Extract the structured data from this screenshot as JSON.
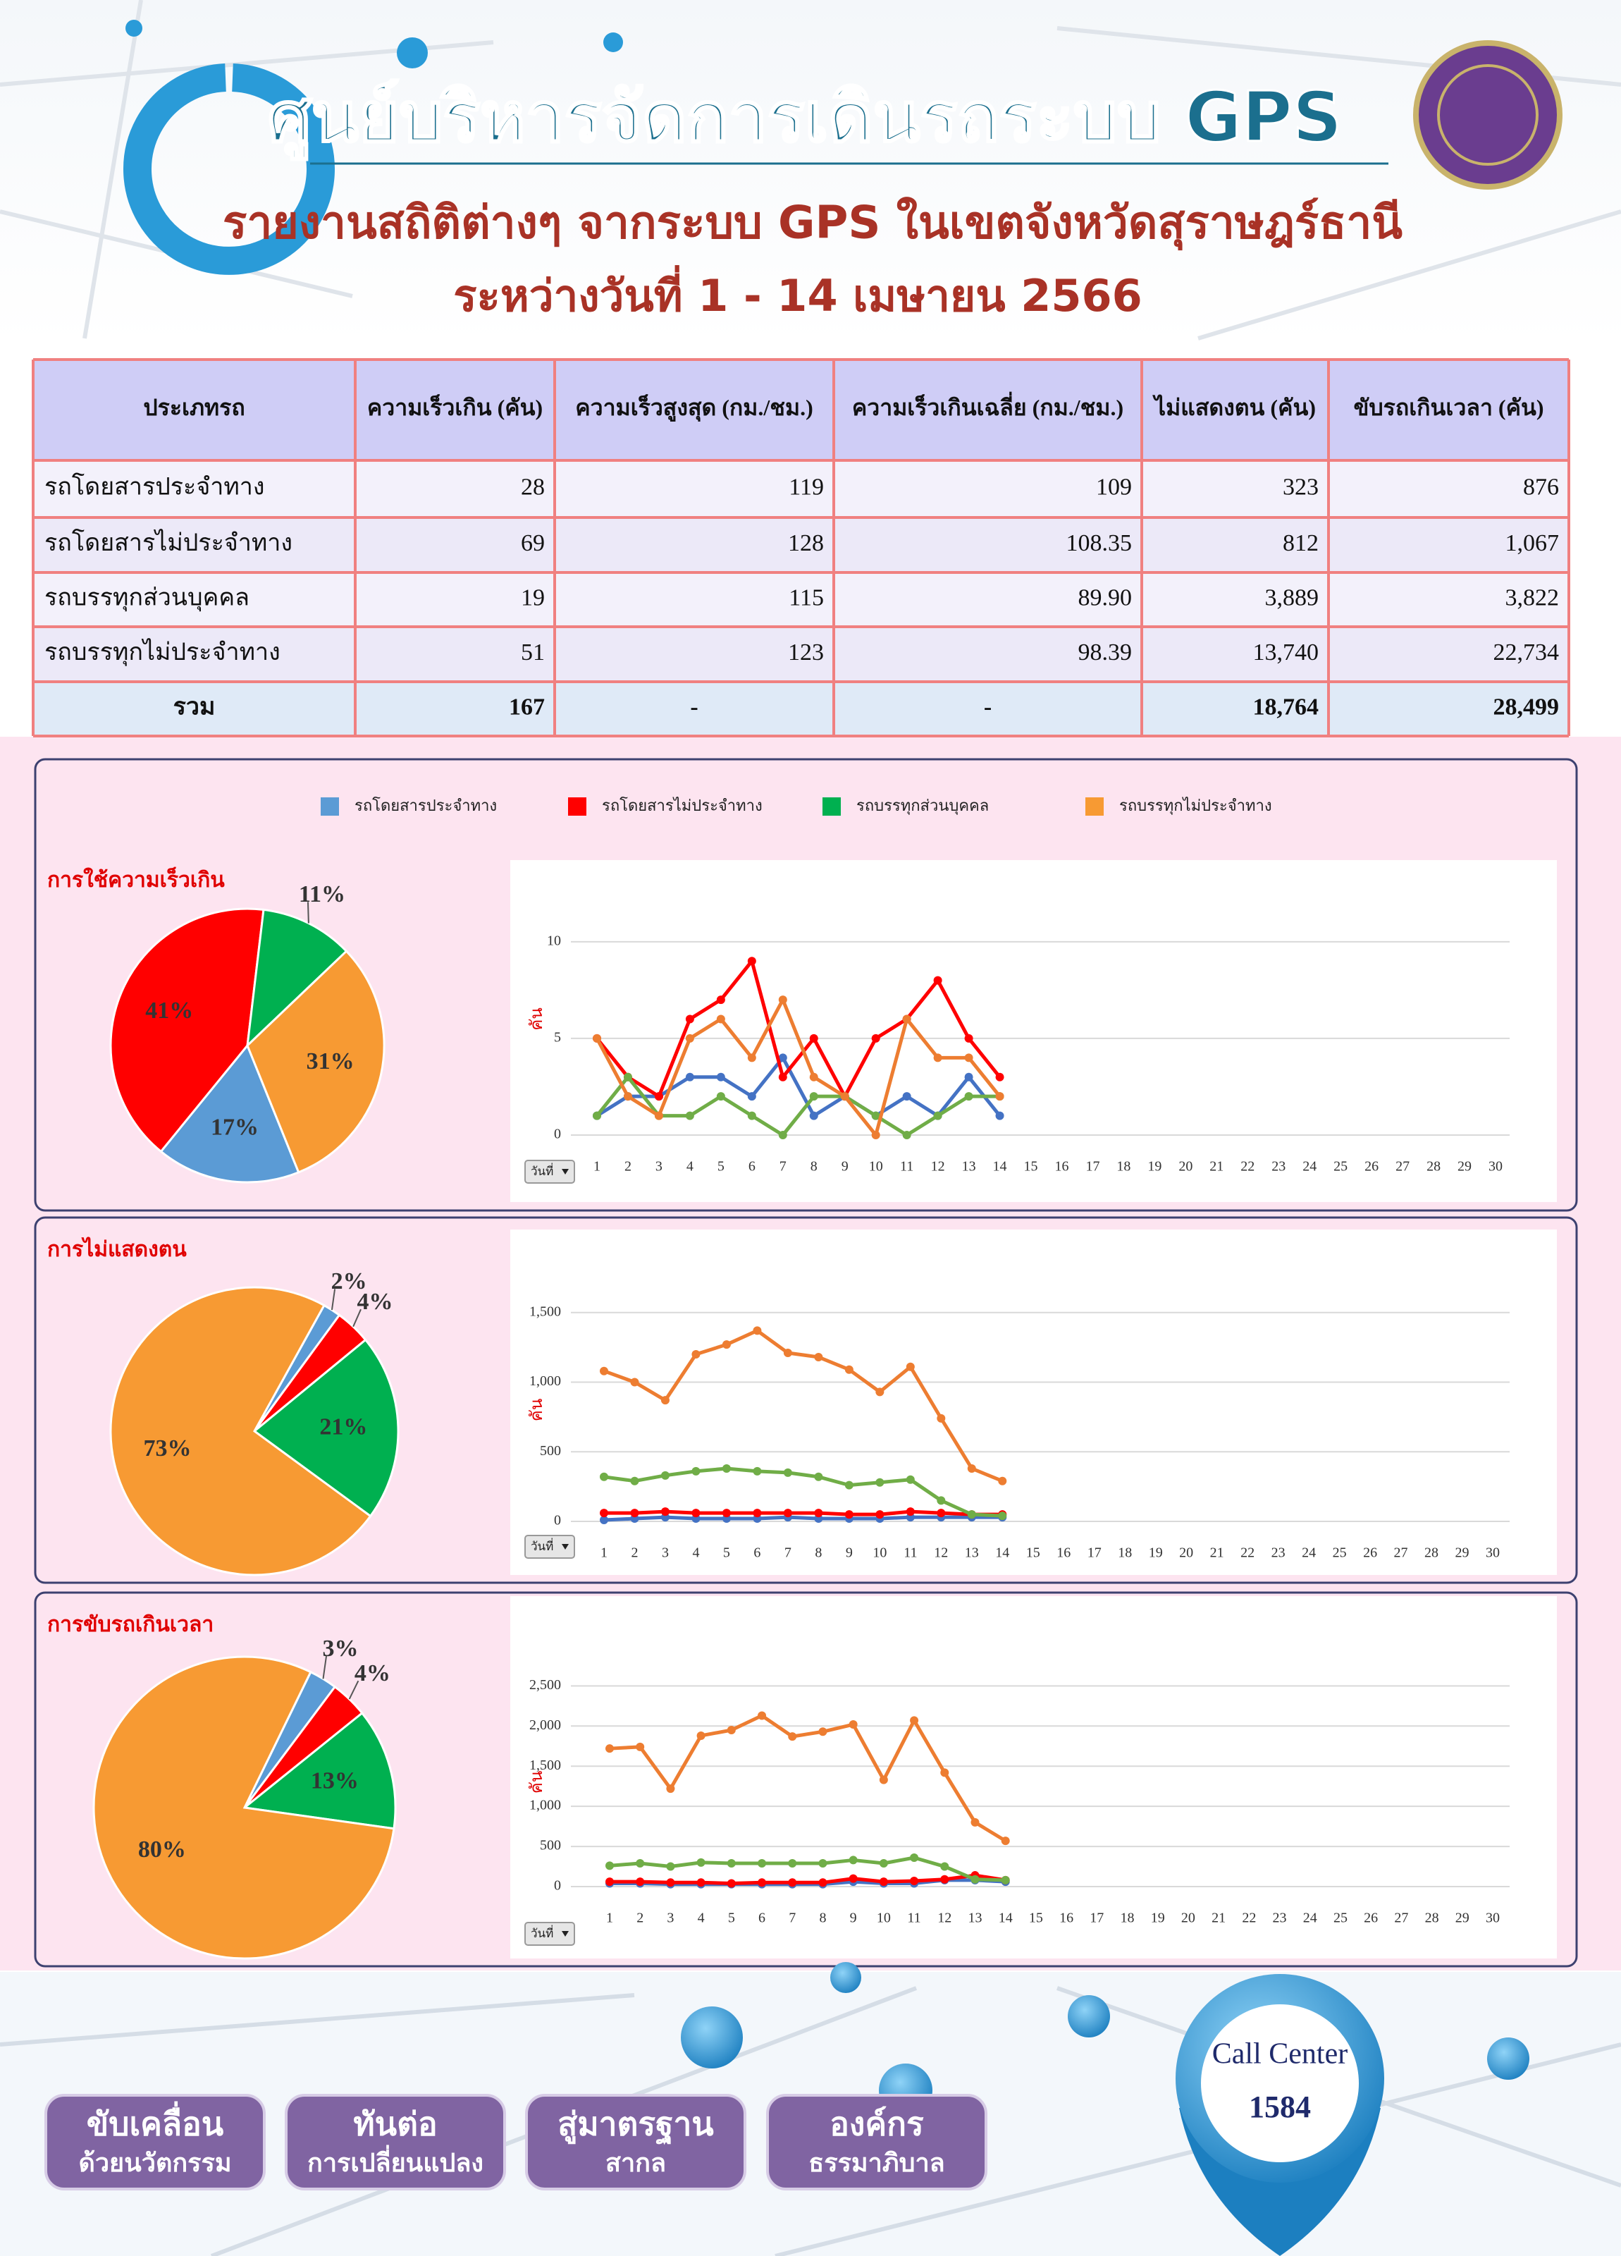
{
  "header": {
    "title": "ศูนย์บริหารจัดการเดินรถระบบ GPS",
    "subtitle": "รายงานสถิติต่างๆ จากระบบ GPS ในเขตจังหวัดสุราษฎร์ธานี",
    "period": "ระหว่างวันที่ 1 - 14 เมษายน 2566"
  },
  "table": {
    "header": [
      "ประเภทรถ",
      "ความเร็วเกิน (คัน)",
      "ความเร็วสูงสุด (กม./ชม.)",
      "ความเร็วเกินเฉลี่ย (กม./ชม.)",
      "ไม่แสดงตน (คัน)",
      "ขับรถเกินเวลา (คัน)"
    ],
    "rows": [
      [
        "รถโดยสารประจำทาง",
        "28",
        "119",
        "109",
        "323",
        "876"
      ],
      [
        "รถโดยสารไม่ประจำทาง",
        "69",
        "128",
        "108.35",
        "812",
        "1,067"
      ],
      [
        "รถบรรทุกส่วนบุคคล",
        "19",
        "115",
        "89.90",
        "3,889",
        "3,822"
      ],
      [
        "รถบรรทุกไม่ประจำทาง",
        "51",
        "123",
        "98.39",
        "13,740",
        "22,734"
      ],
      [
        "รวม",
        "167",
        "-",
        "-",
        "18,764",
        "28,499"
      ]
    ]
  },
  "chart_data": [
    {
      "type": "pie",
      "title": "การใช้ความเร็วเกิน",
      "values": [
        17,
        41,
        11,
        31
      ],
      "value_labels": [
        "17%",
        "41%",
        "11%",
        "31%"
      ],
      "colors": [
        "#5b9bd5",
        "#ff0000",
        "#00b050",
        "#f79a33"
      ]
    },
    {
      "type": "line",
      "ylabel": "คัน",
      "dropdown": "วันที่",
      "categories": [
        "1",
        "2",
        "3",
        "4",
        "5",
        "6",
        "7",
        "8",
        "9",
        "10",
        "11",
        "12",
        "13",
        "14",
        "15",
        "16",
        "17",
        "18",
        "19",
        "20",
        "21",
        "22",
        "23",
        "24",
        "25",
        "26",
        "27",
        "28",
        "29",
        "30"
      ],
      "ylim": [
        0,
        12
      ],
      "yticks": [
        0,
        5,
        10
      ],
      "grid": true,
      "series": [
        {
          "name": "รถโดยสารประจำทาง",
          "color": "#4472c4",
          "values": [
            1,
            2,
            2,
            3,
            3,
            2,
            4,
            1,
            2,
            1,
            2,
            1,
            3,
            1,
            null,
            null,
            null,
            null,
            null,
            null,
            null,
            null,
            null,
            null,
            null,
            null,
            null,
            null,
            null,
            null
          ]
        },
        {
          "name": "รถโดยสารไม่ประจำทาง",
          "color": "#ff0000",
          "values": [
            5,
            3,
            2,
            6,
            7,
            9,
            3,
            5,
            2,
            5,
            6,
            8,
            5,
            3,
            null,
            null,
            null,
            null,
            null,
            null,
            null,
            null,
            null,
            null,
            null,
            null,
            null,
            null,
            null,
            null
          ]
        },
        {
          "name": "รถบรรทุกส่วนบุคคล",
          "color": "#70ad47",
          "values": [
            1,
            3,
            1,
            1,
            2,
            1,
            0,
            2,
            2,
            1,
            0,
            1,
            2,
            2,
            null,
            null,
            null,
            null,
            null,
            null,
            null,
            null,
            null,
            null,
            null,
            null,
            null,
            null,
            null,
            null
          ]
        },
        {
          "name": "รถบรรทุกไม่ประจำทาง",
          "color": "#ed7d31",
          "values": [
            5,
            2,
            1,
            5,
            6,
            4,
            7,
            3,
            2,
            0,
            6,
            4,
            4,
            2,
            null,
            null,
            null,
            null,
            null,
            null,
            null,
            null,
            null,
            null,
            null,
            null,
            null,
            null,
            null,
            null
          ]
        }
      ]
    },
    {
      "type": "pie",
      "title": "การไม่แสดงตน",
      "values": [
        2,
        4,
        21,
        73
      ],
      "value_labels": [
        "2%",
        "4%",
        "21%",
        "73%"
      ],
      "colors": [
        "#5b9bd5",
        "#ff0000",
        "#00b050",
        "#f79a33"
      ]
    },
    {
      "type": "line",
      "ylabel": "คัน",
      "dropdown": "วันที่",
      "categories": [
        "1",
        "2",
        "3",
        "4",
        "5",
        "6",
        "7",
        "8",
        "9",
        "10",
        "11",
        "12",
        "13",
        "14",
        "15",
        "16",
        "17",
        "18",
        "19",
        "20",
        "21",
        "22",
        "23",
        "24",
        "25",
        "26",
        "27",
        "28",
        "29",
        "30"
      ],
      "ylim": [
        0,
        1600
      ],
      "yticks": [
        0,
        500,
        {
          "value": 1000,
          "label": "1,000"
        },
        {
          "value": 1500,
          "label": "1,500"
        }
      ],
      "grid": true,
      "series": [
        {
          "color": "#4472c4",
          "values": [
            10,
            20,
            30,
            20,
            20,
            20,
            30,
            20,
            20,
            20,
            30,
            30,
            30,
            30,
            null,
            null,
            null,
            null,
            null,
            null,
            null,
            null,
            null,
            null,
            null,
            null,
            null,
            null,
            null,
            null
          ]
        },
        {
          "color": "#ff0000",
          "values": [
            60,
            60,
            70,
            60,
            60,
            60,
            60,
            60,
            50,
            50,
            70,
            60,
            50,
            50,
            null,
            null,
            null,
            null,
            null,
            null,
            null,
            null,
            null,
            null,
            null,
            null,
            null,
            null,
            null,
            null
          ]
        },
        {
          "color": "#70ad47",
          "values": [
            320,
            290,
            330,
            360,
            380,
            360,
            350,
            320,
            260,
            280,
            300,
            150,
            50,
            40,
            null,
            null,
            null,
            null,
            null,
            null,
            null,
            null,
            null,
            null,
            null,
            null,
            null,
            null,
            null,
            null
          ]
        },
        {
          "color": "#ed7d31",
          "values": [
            1080,
            1000,
            870,
            1200,
            1270,
            1370,
            1210,
            1180,
            1090,
            930,
            1110,
            740,
            380,
            290,
            null,
            null,
            null,
            null,
            null,
            null,
            null,
            null,
            null,
            null,
            null,
            null,
            null,
            null,
            null,
            null
          ]
        }
      ]
    },
    {
      "type": "pie",
      "title": "การขับรถเกินเวลา",
      "values": [
        3,
        4,
        13,
        80
      ],
      "value_labels": [
        "3%",
        "4%",
        "13%",
        "80%"
      ],
      "colors": [
        "#5b9bd5",
        "#ff0000",
        "#00b050",
        "#f79a33"
      ]
    },
    {
      "type": "line",
      "ylabel": "คัน",
      "dropdown": "วันที่",
      "categories": [
        "1",
        "2",
        "3",
        "4",
        "5",
        "6",
        "7",
        "8",
        "9",
        "10",
        "11",
        "12",
        "13",
        "14",
        "15",
        "16",
        "17",
        "18",
        "19",
        "20",
        "21",
        "22",
        "23",
        "24",
        "25",
        "26",
        "27",
        "28",
        "29",
        "30"
      ],
      "ylim": [
        0,
        2600
      ],
      "yticks": [
        0,
        500,
        {
          "value": 1000,
          "label": "1,000"
        },
        {
          "value": 1500,
          "label": "1,500"
        },
        {
          "value": 2000,
          "label": "2,000"
        },
        {
          "value": 2500,
          "label": "2,500"
        }
      ],
      "grid": true,
      "series": [
        {
          "color": "#4472c4",
          "values": [
            40,
            40,
            30,
            30,
            30,
            30,
            30,
            30,
            60,
            40,
            40,
            80,
            80,
            60,
            null,
            null,
            null,
            null,
            null,
            null,
            null,
            null,
            null,
            null,
            null,
            null,
            null,
            null,
            null,
            null
          ]
        },
        {
          "color": "#ff0000",
          "values": [
            60,
            60,
            50,
            50,
            40,
            50,
            50,
            50,
            100,
            60,
            70,
            90,
            140,
            80,
            null,
            null,
            null,
            null,
            null,
            null,
            null,
            null,
            null,
            null,
            null,
            null,
            null,
            null,
            null,
            null
          ]
        },
        {
          "color": "#70ad47",
          "values": [
            260,
            290,
            250,
            300,
            290,
            290,
            290,
            290,
            330,
            290,
            360,
            250,
            90,
            80,
            null,
            null,
            null,
            null,
            null,
            null,
            null,
            null,
            null,
            null,
            null,
            null,
            null,
            null,
            null,
            null
          ]
        },
        {
          "color": "#ed7d31",
          "values": [
            1720,
            1740,
            1220,
            1880,
            1950,
            2130,
            1870,
            1930,
            2020,
            1330,
            2070,
            1420,
            800,
            570,
            null,
            null,
            null,
            null,
            null,
            null,
            null,
            null,
            null,
            null,
            null,
            null,
            null,
            null,
            null,
            null
          ]
        }
      ]
    }
  ],
  "footer": {
    "buttons": [
      [
        "ขับเคลื่อน",
        "ด้วยนวัตกรรม"
      ],
      [
        "ทันต่อ",
        "การเปลี่ยนแปลง"
      ],
      [
        "สู่มาตรฐาน",
        "สากล"
      ],
      [
        "องค์กร",
        "ธรรมาภิบาล"
      ]
    ],
    "call_center": {
      "label": "Call Center",
      "number": "1584"
    }
  }
}
